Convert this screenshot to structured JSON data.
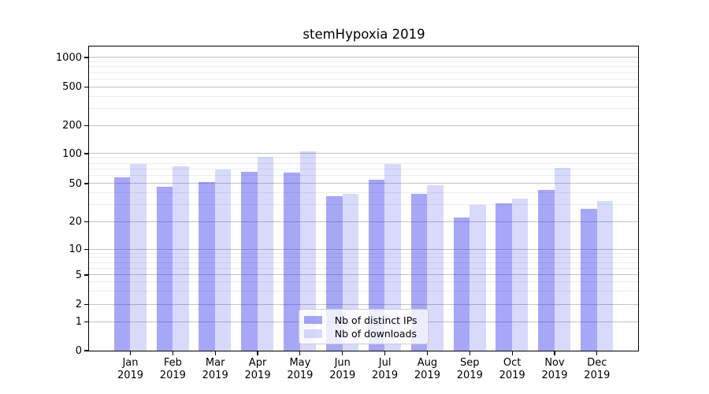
{
  "chart_data": {
    "type": "bar",
    "title": "stemHypoxia 2019",
    "categories": [
      "Jan",
      "Feb",
      "Mar",
      "Apr",
      "May",
      "Jun",
      "Jul",
      "Aug",
      "Sep",
      "Oct",
      "Nov",
      "Dec"
    ],
    "year": "2019",
    "series": [
      {
        "name": "Nb of distinct IPs",
        "color": "rgba(45,45,238,0.42)",
        "values": [
          58,
          46,
          52,
          65,
          64,
          37,
          55,
          39,
          22,
          31,
          43,
          27
        ]
      },
      {
        "name": "Nb of downloads",
        "color": "rgba(45,45,238,0.18)",
        "values": [
          78,
          74,
          69,
          92,
          106,
          39,
          79,
          48,
          30,
          35,
          72,
          33
        ]
      }
    ],
    "y_axis": {
      "scale": "symlog",
      "ticks": [
        0,
        1,
        2,
        5,
        10,
        20,
        50,
        100,
        200,
        500,
        1000
      ],
      "minor_ticks": [
        3,
        4,
        6,
        7,
        8,
        9,
        30,
        40,
        60,
        70,
        80,
        90,
        300,
        400,
        600,
        700,
        800,
        900
      ]
    },
    "grid": {
      "major_color": "#c3c3c3",
      "minor_color": "#ededed"
    },
    "legend": {
      "position": "bottom-center"
    }
  }
}
